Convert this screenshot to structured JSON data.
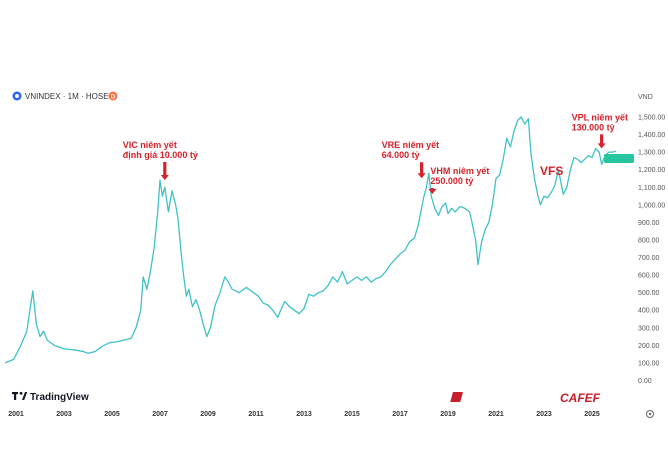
{
  "header": {
    "symbol": "VNINDEX · 1M · HOSE",
    "badge": "D",
    "currency": "VND"
  },
  "branding": {
    "tradingview": "TradingView",
    "cafef": "CAFEF"
  },
  "colors": {
    "line": "#3fc1c9",
    "annotation": "#d6222a",
    "last_price_tag": "#26c6a0"
  },
  "chart_data": {
    "type": "line",
    "title": "",
    "xlabel": "",
    "ylabel": "",
    "x_ticks": [
      "2001",
      "2003",
      "2005",
      "2007",
      "2009",
      "2011",
      "2013",
      "2015",
      "2017",
      "2019",
      "2021",
      "2023",
      "2025"
    ],
    "y_ticks": [
      "1,500.00",
      "1,400.00",
      "1,300.00",
      "1,200.00",
      "1,100.00",
      "1,000.00",
      "900.00",
      "800.00",
      "700.00",
      "600.00",
      "500.00",
      "400.00",
      "300.00",
      "200.00",
      "100.00",
      "0.00"
    ],
    "ylim": [
      0,
      1550
    ],
    "xlim": [
      2000.0,
      2026.3
    ],
    "series": [
      {
        "values": [
          [
            2000.55,
            100
          ],
          [
            2000.9,
            120
          ],
          [
            2001.2,
            200
          ],
          [
            2001.45,
            280
          ],
          [
            2001.6,
            420
          ],
          [
            2001.7,
            510
          ],
          [
            2001.85,
            320
          ],
          [
            2002.0,
            250
          ],
          [
            2002.15,
            280
          ],
          [
            2002.3,
            230
          ],
          [
            2002.6,
            200
          ],
          [
            2003.0,
            180
          ],
          [
            2003.4,
            175
          ],
          [
            2003.8,
            165
          ],
          [
            2004.0,
            155
          ],
          [
            2004.3,
            165
          ],
          [
            2004.6,
            195
          ],
          [
            2004.9,
            215
          ],
          [
            2005.2,
            220
          ],
          [
            2005.5,
            230
          ],
          [
            2005.8,
            240
          ],
          [
            2006.0,
            300
          ],
          [
            2006.2,
            400
          ],
          [
            2006.3,
            590
          ],
          [
            2006.45,
            520
          ],
          [
            2006.6,
            620
          ],
          [
            2006.75,
            750
          ],
          [
            2006.9,
            950
          ],
          [
            2007.0,
            1140
          ],
          [
            2007.1,
            1050
          ],
          [
            2007.2,
            1100
          ],
          [
            2007.35,
            960
          ],
          [
            2007.5,
            1080
          ],
          [
            2007.65,
            1000
          ],
          [
            2007.75,
            920
          ],
          [
            2007.9,
            700
          ],
          [
            2008.0,
            580
          ],
          [
            2008.1,
            480
          ],
          [
            2008.2,
            520
          ],
          [
            2008.35,
            420
          ],
          [
            2008.5,
            460
          ],
          [
            2008.65,
            400
          ],
          [
            2008.8,
            320
          ],
          [
            2008.95,
            250
          ],
          [
            2009.1,
            300
          ],
          [
            2009.3,
            430
          ],
          [
            2009.5,
            500
          ],
          [
            2009.7,
            590
          ],
          [
            2009.85,
            560
          ],
          [
            2010.0,
            520
          ],
          [
            2010.3,
            500
          ],
          [
            2010.6,
            530
          ],
          [
            2010.9,
            500
          ],
          [
            2011.1,
            480
          ],
          [
            2011.3,
            440
          ],
          [
            2011.5,
            430
          ],
          [
            2011.7,
            400
          ],
          [
            2011.9,
            360
          ],
          [
            2012.0,
            390
          ],
          [
            2012.2,
            450
          ],
          [
            2012.4,
            420
          ],
          [
            2012.6,
            400
          ],
          [
            2012.8,
            380
          ],
          [
            2013.0,
            410
          ],
          [
            2013.2,
            490
          ],
          [
            2013.4,
            480
          ],
          [
            2013.6,
            500
          ],
          [
            2013.8,
            510
          ],
          [
            2014.0,
            540
          ],
          [
            2014.2,
            590
          ],
          [
            2014.4,
            560
          ],
          [
            2014.6,
            620
          ],
          [
            2014.8,
            550
          ],
          [
            2015.0,
            570
          ],
          [
            2015.2,
            590
          ],
          [
            2015.4,
            570
          ],
          [
            2015.6,
            590
          ],
          [
            2015.8,
            560
          ],
          [
            2016.0,
            580
          ],
          [
            2016.2,
            590
          ],
          [
            2016.4,
            620
          ],
          [
            2016.6,
            660
          ],
          [
            2016.8,
            690
          ],
          [
            2017.0,
            720
          ],
          [
            2017.2,
            740
          ],
          [
            2017.4,
            790
          ],
          [
            2017.6,
            810
          ],
          [
            2017.75,
            880
          ],
          [
            2017.9,
            980
          ],
          [
            2018.0,
            1050
          ],
          [
            2018.1,
            1100
          ],
          [
            2018.2,
            1180
          ],
          [
            2018.3,
            1050
          ],
          [
            2018.45,
            980
          ],
          [
            2018.6,
            940
          ],
          [
            2018.75,
            990
          ],
          [
            2018.9,
            1010
          ],
          [
            2019.0,
            950
          ],
          [
            2019.15,
            980
          ],
          [
            2019.3,
            960
          ],
          [
            2019.5,
            990
          ],
          [
            2019.7,
            980
          ],
          [
            2019.9,
            960
          ],
          [
            2020.0,
            900
          ],
          [
            2020.15,
            800
          ],
          [
            2020.25,
            660
          ],
          [
            2020.4,
            790
          ],
          [
            2020.55,
            860
          ],
          [
            2020.7,
            900
          ],
          [
            2020.85,
            1000
          ],
          [
            2021.0,
            1150
          ],
          [
            2021.15,
            1170
          ],
          [
            2021.3,
            1260
          ],
          [
            2021.45,
            1380
          ],
          [
            2021.6,
            1330
          ],
          [
            2021.75,
            1420
          ],
          [
            2021.9,
            1480
          ],
          [
            2022.05,
            1500
          ],
          [
            2022.2,
            1460
          ],
          [
            2022.35,
            1490
          ],
          [
            2022.45,
            1300
          ],
          [
            2022.6,
            1150
          ],
          [
            2022.75,
            1050
          ],
          [
            2022.85,
            1000
          ],
          [
            2023.0,
            1050
          ],
          [
            2023.15,
            1040
          ],
          [
            2023.3,
            1070
          ],
          [
            2023.45,
            1110
          ],
          [
            2023.6,
            1200
          ],
          [
            2023.7,
            1130
          ],
          [
            2023.8,
            1060
          ],
          [
            2023.95,
            1100
          ],
          [
            2024.1,
            1200
          ],
          [
            2024.25,
            1270
          ],
          [
            2024.4,
            1260
          ],
          [
            2024.55,
            1240
          ],
          [
            2024.7,
            1260
          ],
          [
            2024.85,
            1280
          ],
          [
            2025.0,
            1270
          ],
          [
            2025.15,
            1320
          ],
          [
            2025.3,
            1300
          ],
          [
            2025.4,
            1230
          ],
          [
            2025.55,
            1280
          ],
          [
            2025.7,
            1300
          ],
          [
            2025.85,
            1300
          ],
          [
            2026.0,
            1305
          ]
        ]
      }
    ],
    "annotations": [
      {
        "lines": [
          "VIC niêm yết",
          "định giá 10.000 tỷ"
        ],
        "x": 2007.2,
        "y": 1130
      },
      {
        "lines": [
          "VRE niêm yết",
          "64.000 tỷ"
        ],
        "x": 2017.9,
        "y": 1140
      },
      {
        "lines": [
          "VHM niêm yết",
          "250.000 tỷ"
        ],
        "x": 2018.35,
        "y": 1050
      },
      {
        "lines": [
          "VPL niêm yết",
          "130.000 tỷ"
        ],
        "x": 2025.4,
        "y": 1310
      }
    ],
    "vfs_label": "VFS",
    "grid": false,
    "legend": "none"
  }
}
